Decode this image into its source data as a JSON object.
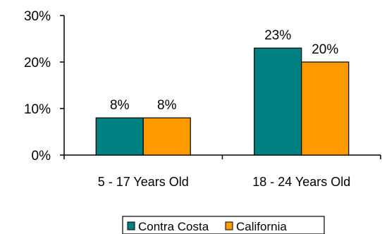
{
  "chart_data": {
    "type": "bar",
    "title": "",
    "xlabel": "",
    "ylabel": "",
    "categories": [
      "5 - 17 Years Old",
      "18 - 24 Years Old"
    ],
    "series": [
      {
        "name": "Contra Costa",
        "values": [
          8,
          23
        ],
        "labels": [
          "8%",
          "23%"
        ],
        "color": "#008080"
      },
      {
        "name": "California",
        "values": [
          8,
          20
        ],
        "labels": [
          "8%",
          "20%"
        ],
        "color": "#FF9900"
      }
    ],
    "ylim": [
      0,
      30
    ],
    "yticks": [
      0,
      10,
      20,
      30
    ],
    "ytick_labels": [
      "0%",
      "10%",
      "20%",
      "30%"
    ],
    "grid": false,
    "legend_position": "bottom"
  }
}
